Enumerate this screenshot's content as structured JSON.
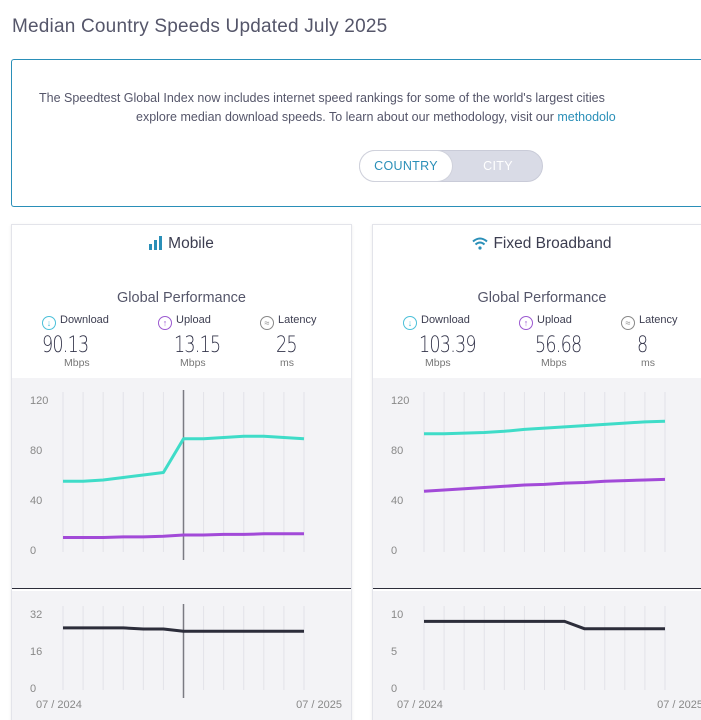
{
  "page": {
    "title": "Median Country Speeds Updated July 2025"
  },
  "info": {
    "line1": "The Speedtest Global Index now includes internet speed rankings for some of the world's largest cities",
    "line2_prefix": "explore median download speeds. To learn about our methodology, visit our ",
    "line2_link": "methodolo"
  },
  "toggle": {
    "options": [
      "COUNTRY",
      "CITY"
    ],
    "selected": "COUNTRY"
  },
  "colors": {
    "download": "#3fdcc8",
    "upload": "#a24ad8",
    "latency": "#2c2d3a",
    "accent": "#2a8fb8"
  },
  "mobile": {
    "heading": "Mobile",
    "icon": "signal-bars-icon",
    "section_title": "Global Performance",
    "metrics": [
      {
        "label": "Download",
        "value": "90.13",
        "unit": "Mbps",
        "icon": "download-icon"
      },
      {
        "label": "Upload",
        "value": "13.15",
        "unit": "Mbps",
        "icon": "upload-icon"
      },
      {
        "label": "Latency",
        "value": "25",
        "unit": "ms",
        "icon": "latency-icon"
      }
    ]
  },
  "fixed": {
    "heading": "Fixed Broadband",
    "icon": "wifi-icon",
    "section_title": "Global Performance",
    "metrics": [
      {
        "label": "Download",
        "value": "103.39",
        "unit": "Mbps",
        "icon": "download-icon"
      },
      {
        "label": "Upload",
        "value": "56.68",
        "unit": "Mbps",
        "icon": "upload-icon"
      },
      {
        "label": "Latency",
        "value": "8",
        "unit": "ms",
        "icon": "latency-icon"
      }
    ]
  },
  "chart_data": [
    {
      "type": "line",
      "panel": "mobile-speed",
      "ylim": [
        0,
        120
      ],
      "yticks": [
        0,
        40,
        80,
        120
      ],
      "x": [
        "07/2024",
        "08/2024",
        "09/2024",
        "10/2024",
        "11/2024",
        "12/2024",
        "01/2025",
        "02/2025",
        "03/2025",
        "04/2025",
        "05/2025",
        "06/2025",
        "07/2025"
      ],
      "highlight_index": 6,
      "series": [
        {
          "key": "download",
          "values": [
            55,
            55,
            56,
            58,
            60,
            62,
            89,
            89,
            90,
            91,
            91,
            90,
            89
          ]
        },
        {
          "key": "upload",
          "values": [
            10,
            10,
            10,
            10.5,
            10.5,
            11,
            12,
            12,
            12.5,
            12.5,
            13,
            13,
            13
          ]
        }
      ]
    },
    {
      "type": "line",
      "panel": "mobile-latency",
      "ylim": [
        0,
        32
      ],
      "yticks": [
        0,
        16,
        32
      ],
      "x": [
        "07/2024",
        "08/2024",
        "09/2024",
        "10/2024",
        "11/2024",
        "12/2024",
        "01/2025",
        "02/2025",
        "03/2025",
        "04/2025",
        "05/2025",
        "06/2025",
        "07/2025"
      ],
      "xtick_labels": [
        "07 / 2024",
        "07 / 2025"
      ],
      "highlight_index": 6,
      "series": [
        {
          "key": "latency",
          "values": [
            26,
            26,
            26,
            26,
            25.5,
            25.5,
            24.5,
            24.5,
            24.5,
            24.5,
            24.5,
            24.5,
            24.5
          ]
        }
      ]
    },
    {
      "type": "line",
      "panel": "fixed-speed",
      "ylim": [
        0,
        120
      ],
      "yticks": [
        0,
        40,
        80,
        120
      ],
      "x": [
        "07/2024",
        "08/2024",
        "09/2024",
        "10/2024",
        "11/2024",
        "12/2024",
        "01/2025",
        "02/2025",
        "03/2025",
        "04/2025",
        "05/2025",
        "06/2025",
        "07/2025"
      ],
      "series": [
        {
          "key": "download",
          "values": [
            93,
            93,
            93.5,
            94,
            95,
            96.5,
            97.5,
            98.5,
            99.5,
            100.5,
            101.5,
            102.5,
            103
          ]
        },
        {
          "key": "upload",
          "values": [
            47,
            48,
            49,
            50,
            51,
            52,
            52.5,
            53.5,
            54,
            55,
            55.5,
            56,
            56.5
          ]
        }
      ]
    },
    {
      "type": "line",
      "panel": "fixed-latency",
      "ylim": [
        0,
        10
      ],
      "yticks": [
        0,
        5,
        10
      ],
      "x": [
        "07/2024",
        "08/2024",
        "09/2024",
        "10/2024",
        "11/2024",
        "12/2024",
        "01/2025",
        "02/2025",
        "03/2025",
        "04/2025",
        "05/2025",
        "06/2025",
        "07/2025"
      ],
      "xtick_labels": [
        "07 / 2024",
        "07 / 2025"
      ],
      "series": [
        {
          "key": "latency",
          "values": [
            9,
            9,
            9,
            9,
            9,
            9,
            9,
            9,
            8,
            8,
            8,
            8,
            8
          ]
        }
      ]
    }
  ]
}
